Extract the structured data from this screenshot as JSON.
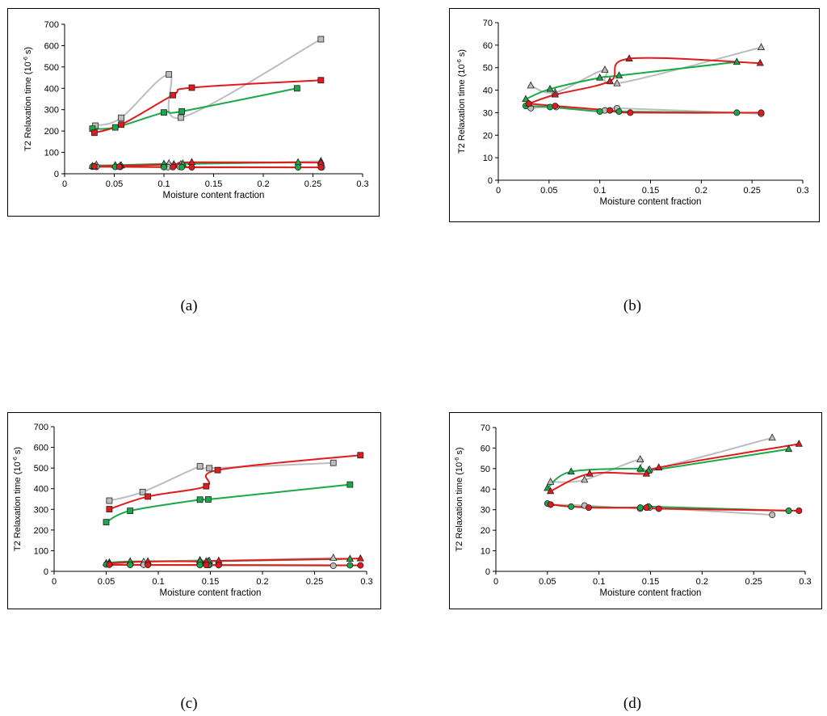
{
  "colors": {
    "red": "#e31a1c",
    "green": "#1aa84a",
    "gray": "#bdbdbd",
    "axis": "#000000"
  },
  "chart_data": [
    {
      "id": "a",
      "caption": "(a)",
      "type": "scatter",
      "xlabel": "Moisture content fraction",
      "ylabel_main": "T2 Relaxation time (10",
      "ylabel_sup": "-6",
      "ylabel_tail": " s)",
      "xlim": [
        0,
        0.3
      ],
      "ylim": [
        0,
        700
      ],
      "xticks": [
        0,
        0.05,
        0.1,
        0.15,
        0.2,
        0.25,
        0.3
      ],
      "xtick_labels": [
        "0",
        "0.05",
        "0.1",
        "0.15",
        "0.2",
        "0.25",
        "0.3"
      ],
      "yticks": [
        0,
        100,
        200,
        300,
        400,
        500,
        600,
        700
      ],
      "ytick_labels": [
        "0",
        "100",
        "200",
        "300",
        "400",
        "500",
        "600",
        "700"
      ],
      "series": [
        {
          "name": "gray-square",
          "color": "gray",
          "marker": "square",
          "x": [
            0.031,
            0.057,
            0.105,
            0.117,
            0.258
          ],
          "y": [
            225,
            262,
            465,
            263,
            630
          ]
        },
        {
          "name": "red-square",
          "color": "red",
          "marker": "square",
          "x": [
            0.03,
            0.057,
            0.109,
            0.128,
            0.258
          ],
          "y": [
            192,
            230,
            368,
            403,
            438
          ]
        },
        {
          "name": "green-square",
          "color": "green",
          "marker": "square",
          "x": [
            0.028,
            0.051,
            0.1,
            0.118,
            0.234
          ],
          "y": [
            211,
            217,
            287,
            292,
            400
          ]
        },
        {
          "name": "gray-triangle",
          "color": "gray",
          "marker": "triangle",
          "x": [
            0.032,
            0.057,
            0.105,
            0.117,
            0.258
          ],
          "y": [
            42,
            39,
            48,
            44,
            59
          ]
        },
        {
          "name": "red-triangle",
          "color": "red",
          "marker": "triangle",
          "x": [
            0.03,
            0.056,
            0.11,
            0.128,
            0.258
          ],
          "y": [
            34,
            38,
            44,
            54,
            52
          ]
        },
        {
          "name": "green-triangle",
          "color": "green",
          "marker": "triangle",
          "x": [
            0.028,
            0.051,
            0.1,
            0.119,
            0.235
          ],
          "y": [
            36,
            40,
            46,
            47,
            53
          ]
        },
        {
          "name": "gray-circle",
          "color": "gray",
          "marker": "circle",
          "x": [
            0.032,
            0.056,
            0.104,
            0.116,
            0.259
          ],
          "y": [
            32,
            32,
            31,
            32,
            30
          ]
        },
        {
          "name": "red-circle",
          "color": "red",
          "marker": "circle",
          "x": [
            0.03,
            0.055,
            0.109,
            0.128,
            0.258
          ],
          "y": [
            34,
            33,
            31,
            30,
            30
          ]
        },
        {
          "name": "green-circle",
          "color": "green",
          "marker": "circle",
          "x": [
            0.028,
            0.051,
            0.1,
            0.118,
            0.235
          ],
          "y": [
            33,
            32,
            31,
            31,
            30
          ]
        }
      ]
    },
    {
      "id": "b",
      "caption": "(b)",
      "type": "scatter",
      "xlabel": "Moisture content fraction",
      "ylabel_main": "T2 Relaxation time (10",
      "ylabel_sup": "-6",
      "ylabel_tail": " s)",
      "xlim": [
        0,
        0.3
      ],
      "ylim": [
        0,
        70
      ],
      "xticks": [
        0,
        0.05,
        0.1,
        0.15,
        0.2,
        0.25,
        0.3
      ],
      "xtick_labels": [
        "0",
        "0.05",
        "0.1",
        "0.15",
        "0.2",
        "0.25",
        "0.3"
      ],
      "yticks": [
        0,
        10,
        20,
        30,
        40,
        50,
        60,
        70
      ],
      "ytick_labels": [
        "0",
        "10",
        "20",
        "30",
        "40",
        "50",
        "60",
        "70"
      ],
      "series": [
        {
          "name": "gray-triangle",
          "color": "gray",
          "marker": "triangle",
          "x": [
            0.032,
            0.056,
            0.105,
            0.117,
            0.259
          ],
          "y": [
            42,
            39,
            49,
            43,
            59
          ]
        },
        {
          "name": "red-triangle",
          "color": "red",
          "marker": "triangle",
          "x": [
            0.03,
            0.056,
            0.11,
            0.129,
            0.258
          ],
          "y": [
            34,
            38,
            44,
            54,
            52
          ]
        },
        {
          "name": "green-triangle",
          "color": "green",
          "marker": "triangle",
          "x": [
            0.027,
            0.051,
            0.1,
            0.119,
            0.235
          ],
          "y": [
            36,
            40.5,
            45.5,
            46.5,
            52.5
          ]
        },
        {
          "name": "gray-circle",
          "color": "gray",
          "marker": "circle",
          "x": [
            0.032,
            0.057,
            0.105,
            0.117,
            0.259
          ],
          "y": [
            32,
            32.5,
            31,
            32,
            29.5
          ]
        },
        {
          "name": "red-circle",
          "color": "red",
          "marker": "circle",
          "x": [
            0.03,
            0.056,
            0.11,
            0.13,
            0.259
          ],
          "y": [
            34,
            33,
            31,
            30,
            30
          ]
        },
        {
          "name": "green-circle",
          "color": "green",
          "marker": "circle",
          "x": [
            0.027,
            0.051,
            0.1,
            0.119,
            0.235
          ],
          "y": [
            33,
            32.5,
            30.5,
            30.5,
            30
          ]
        }
      ]
    },
    {
      "id": "c",
      "caption": "(c)",
      "type": "scatter",
      "xlabel": "Moisture content fraction",
      "ylabel_main": "T2 Relaxation time (10",
      "ylabel_sup": "-6",
      "ylabel_tail": " s)",
      "xlim": [
        0,
        0.3
      ],
      "ylim": [
        0,
        700
      ],
      "xticks": [
        0,
        0.05,
        0.1,
        0.15,
        0.2,
        0.25,
        0.3
      ],
      "xtick_labels": [
        "0",
        "0.05",
        "0.1",
        "0.15",
        "0.2",
        "0.25",
        "0.3"
      ],
      "yticks": [
        0,
        100,
        200,
        300,
        400,
        500,
        600,
        700
      ],
      "ytick_labels": [
        "0",
        "100",
        "200",
        "300",
        "400",
        "500",
        "600",
        "700"
      ],
      "series": [
        {
          "name": "gray-square",
          "color": "gray",
          "marker": "square",
          "x": [
            0.053,
            0.085,
            0.14,
            0.149,
            0.268
          ],
          "y": [
            342,
            384,
            508,
            499,
            525
          ]
        },
        {
          "name": "red-square",
          "color": "red",
          "marker": "square",
          "x": [
            0.053,
            0.09,
            0.146,
            0.157,
            0.294
          ],
          "y": [
            301,
            362,
            412,
            490,
            562
          ]
        },
        {
          "name": "green-square",
          "color": "green",
          "marker": "square",
          "x": [
            0.05,
            0.073,
            0.14,
            0.148,
            0.284
          ],
          "y": [
            238,
            293,
            347,
            348,
            420
          ]
        },
        {
          "name": "gray-triangle",
          "color": "gray",
          "marker": "triangle",
          "x": [
            0.053,
            0.086,
            0.14,
            0.149,
            0.268
          ],
          "y": [
            43,
            46,
            54,
            50,
            65
          ]
        },
        {
          "name": "red-triangle",
          "color": "red",
          "marker": "triangle",
          "x": [
            0.053,
            0.09,
            0.146,
            0.158,
            0.294
          ],
          "y": [
            39,
            48,
            48,
            51,
            62
          ]
        },
        {
          "name": "green-triangle",
          "color": "green",
          "marker": "triangle",
          "x": [
            0.05,
            0.073,
            0.14,
            0.148,
            0.284
          ],
          "y": [
            40,
            48,
            50,
            49,
            60
          ]
        },
        {
          "name": "gray-circle",
          "color": "gray",
          "marker": "circle",
          "x": [
            0.053,
            0.086,
            0.14,
            0.149,
            0.268
          ],
          "y": [
            33,
            32,
            31,
            31,
            27
          ]
        },
        {
          "name": "red-circle",
          "color": "red",
          "marker": "circle",
          "x": [
            0.053,
            0.09,
            0.146,
            0.158,
            0.294
          ],
          "y": [
            32,
            31,
            31,
            30,
            29
          ]
        },
        {
          "name": "green-circle",
          "color": "green",
          "marker": "circle",
          "x": [
            0.05,
            0.073,
            0.14,
            0.148,
            0.284
          ],
          "y": [
            33,
            31,
            30.5,
            31,
            29.5
          ]
        }
      ]
    },
    {
      "id": "d",
      "caption": "(d)",
      "type": "scatter",
      "xlabel": "Moisture content fraction",
      "ylabel_main": "T2 Relaxation time (10",
      "ylabel_sup": "-6",
      "ylabel_tail": " s)",
      "xlim": [
        0,
        0.3
      ],
      "ylim": [
        0,
        70
      ],
      "xticks": [
        0,
        0.05,
        0.1,
        0.15,
        0.2,
        0.25,
        0.3
      ],
      "xtick_labels": [
        "0",
        "0.05",
        "0.1",
        "0.15",
        "0.2",
        "0.25",
        "0.3"
      ],
      "yticks": [
        0,
        10,
        20,
        30,
        40,
        50,
        60,
        70
      ],
      "ytick_labels": [
        "0",
        "10",
        "20",
        "30",
        "40",
        "50",
        "60",
        "70"
      ],
      "series": [
        {
          "name": "gray-triangle",
          "color": "gray",
          "marker": "triangle",
          "x": [
            0.053,
            0.086,
            0.14,
            0.149,
            0.268
          ],
          "y": [
            43.5,
            44.5,
            54.5,
            49.5,
            65
          ]
        },
        {
          "name": "red-triangle",
          "color": "red",
          "marker": "triangle",
          "x": [
            0.053,
            0.091,
            0.146,
            0.158,
            0.294
          ],
          "y": [
            39,
            47.5,
            47.5,
            50.5,
            62
          ]
        },
        {
          "name": "green-triangle",
          "color": "green",
          "marker": "triangle",
          "x": [
            0.05,
            0.073,
            0.14,
            0.148,
            0.284
          ],
          "y": [
            40.5,
            48.5,
            50,
            49,
            59.5
          ]
        },
        {
          "name": "gray-circle",
          "color": "gray",
          "marker": "circle",
          "x": [
            0.053,
            0.086,
            0.14,
            0.149,
            0.268
          ],
          "y": [
            32.5,
            32,
            30.5,
            31,
            27.5
          ]
        },
        {
          "name": "red-circle",
          "color": "red",
          "marker": "circle",
          "x": [
            0.053,
            0.09,
            0.146,
            0.158,
            0.294
          ],
          "y": [
            32.5,
            31,
            31,
            30.5,
            29.5
          ]
        },
        {
          "name": "green-circle",
          "color": "green",
          "marker": "circle",
          "x": [
            0.05,
            0.073,
            0.14,
            0.148,
            0.284
          ],
          "y": [
            33,
            31.5,
            31,
            31.5,
            29.5
          ]
        }
      ]
    }
  ]
}
